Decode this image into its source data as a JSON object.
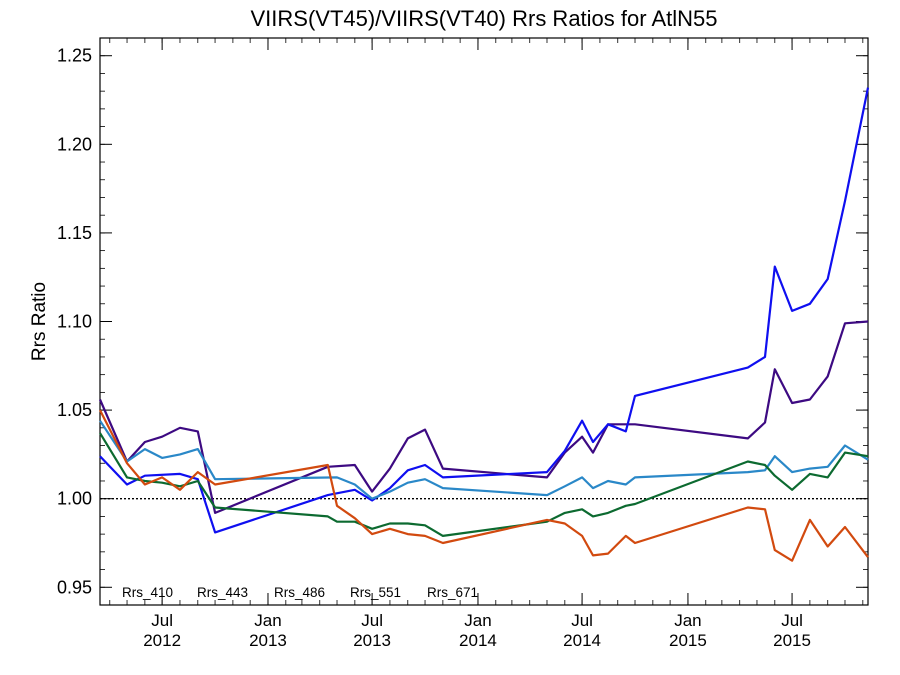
{
  "chart_data": {
    "type": "line",
    "title": "VIIRS(VT45)/VIIRS(VT40)  Rrs Ratios for AtlN55",
    "xlabel": "",
    "ylabel": "Rrs Ratio",
    "xlim": [
      "2012-03-15",
      "2015-11-10"
    ],
    "ylim": [
      0.94,
      1.26
    ],
    "x_ticks": [
      {
        "date": "2012-07-01",
        "line1": "Jul",
        "line2": "2012"
      },
      {
        "date": "2013-01-01",
        "line1": "Jan",
        "line2": "2013"
      },
      {
        "date": "2013-07-01",
        "line1": "Jul",
        "line2": "2013"
      },
      {
        "date": "2014-01-01",
        "line1": "Jan",
        "line2": "2014"
      },
      {
        "date": "2014-07-01",
        "line1": "Jul",
        "line2": "2014"
      },
      {
        "date": "2015-01-01",
        "line1": "Jan",
        "line2": "2015"
      },
      {
        "date": "2015-07-01",
        "line1": "Jul",
        "line2": "2015"
      }
    ],
    "y_ticks": [
      {
        "value": 0.95,
        "label": "0.95"
      },
      {
        "value": 1.0,
        "label": "1.00"
      },
      {
        "value": 1.05,
        "label": "1.05"
      },
      {
        "value": 1.1,
        "label": "1.10"
      },
      {
        "value": 1.15,
        "label": "1.15"
      },
      {
        "value": 1.2,
        "label": "1.20"
      },
      {
        "value": 1.25,
        "label": "1.25"
      }
    ],
    "reference_line": {
      "y": 1.0,
      "style": "dotted"
    },
    "legend_position": "bottom-left",
    "series": [
      {
        "name": "Rrs_410",
        "color": "#3d0a82",
        "points": [
          [
            "2012-03-15",
            1.056
          ],
          [
            "2012-05-01",
            1.021
          ],
          [
            "2012-06-01",
            1.032
          ],
          [
            "2012-07-01",
            1.035
          ],
          [
            "2012-08-01",
            1.04
          ],
          [
            "2012-09-01",
            1.038
          ],
          [
            "2012-10-01",
            0.992
          ],
          [
            "2013-04-15",
            1.018
          ],
          [
            "2013-06-01",
            1.019
          ],
          [
            "2013-07-01",
            1.004
          ],
          [
            "2013-08-01",
            1.017
          ],
          [
            "2013-09-01",
            1.034
          ],
          [
            "2013-10-01",
            1.039
          ],
          [
            "2013-11-01",
            1.017
          ],
          [
            "2014-05-01",
            1.012
          ],
          [
            "2014-06-01",
            1.026
          ],
          [
            "2014-07-01",
            1.035
          ],
          [
            "2014-07-20",
            1.026
          ],
          [
            "2014-08-15",
            1.042
          ],
          [
            "2014-10-01",
            1.042
          ],
          [
            "2015-04-15",
            1.034
          ],
          [
            "2015-05-15",
            1.043
          ],
          [
            "2015-06-01",
            1.073
          ],
          [
            "2015-07-01",
            1.054
          ],
          [
            "2015-08-01",
            1.056
          ],
          [
            "2015-09-01",
            1.069
          ],
          [
            "2015-10-01",
            1.099
          ],
          [
            "2015-11-10",
            1.1
          ]
        ]
      },
      {
        "name": "Rrs_443",
        "color": "#0f0ff0",
        "points": [
          [
            "2012-03-15",
            1.024
          ],
          [
            "2012-05-01",
            1.008
          ],
          [
            "2012-06-01",
            1.013
          ],
          [
            "2012-08-01",
            1.014
          ],
          [
            "2012-09-01",
            1.011
          ],
          [
            "2012-10-01",
            0.981
          ],
          [
            "2013-04-15",
            1.002
          ],
          [
            "2013-06-01",
            1.005
          ],
          [
            "2013-07-01",
            0.999
          ],
          [
            "2013-08-01",
            1.006
          ],
          [
            "2013-09-01",
            1.016
          ],
          [
            "2013-10-01",
            1.019
          ],
          [
            "2013-11-01",
            1.012
          ],
          [
            "2014-05-01",
            1.015
          ],
          [
            "2014-06-01",
            1.027
          ],
          [
            "2014-07-01",
            1.044
          ],
          [
            "2014-07-20",
            1.032
          ],
          [
            "2014-08-15",
            1.042
          ],
          [
            "2014-09-15",
            1.038
          ],
          [
            "2014-10-01",
            1.058
          ],
          [
            "2015-04-15",
            1.074
          ],
          [
            "2015-05-15",
            1.08
          ],
          [
            "2015-06-01",
            1.131
          ],
          [
            "2015-07-01",
            1.106
          ],
          [
            "2015-08-01",
            1.11
          ],
          [
            "2015-09-01",
            1.124
          ],
          [
            "2015-10-01",
            1.168
          ],
          [
            "2015-11-10",
            1.232
          ]
        ]
      },
      {
        "name": "Rrs_486",
        "color": "#2a88c8",
        "points": [
          [
            "2012-03-15",
            1.044
          ],
          [
            "2012-05-01",
            1.021
          ],
          [
            "2012-06-01",
            1.028
          ],
          [
            "2012-07-01",
            1.023
          ],
          [
            "2012-08-01",
            1.025
          ],
          [
            "2012-09-01",
            1.028
          ],
          [
            "2012-10-01",
            1.011
          ],
          [
            "2013-05-01",
            1.012
          ],
          [
            "2013-06-01",
            1.008
          ],
          [
            "2013-07-01",
            1.0
          ],
          [
            "2013-08-01",
            1.004
          ],
          [
            "2013-09-01",
            1.009
          ],
          [
            "2013-10-01",
            1.011
          ],
          [
            "2013-11-01",
            1.006
          ],
          [
            "2014-05-01",
            1.002
          ],
          [
            "2014-06-01",
            1.007
          ],
          [
            "2014-07-01",
            1.012
          ],
          [
            "2014-07-20",
            1.006
          ],
          [
            "2014-08-15",
            1.01
          ],
          [
            "2014-09-15",
            1.008
          ],
          [
            "2014-10-01",
            1.012
          ],
          [
            "2015-04-15",
            1.015
          ],
          [
            "2015-05-15",
            1.016
          ],
          [
            "2015-06-01",
            1.024
          ],
          [
            "2015-07-01",
            1.015
          ],
          [
            "2015-08-01",
            1.017
          ],
          [
            "2015-09-01",
            1.018
          ],
          [
            "2015-10-01",
            1.03
          ],
          [
            "2015-11-10",
            1.022
          ]
        ]
      },
      {
        "name": "Rrs_551",
        "color": "#0c6a30",
        "points": [
          [
            "2012-03-15",
            1.037
          ],
          [
            "2012-05-01",
            1.012
          ],
          [
            "2012-06-01",
            1.01
          ],
          [
            "2012-07-01",
            1.009
          ],
          [
            "2012-08-01",
            1.007
          ],
          [
            "2012-09-01",
            1.01
          ],
          [
            "2012-10-01",
            0.995
          ],
          [
            "2013-04-15",
            0.99
          ],
          [
            "2013-05-01",
            0.987
          ],
          [
            "2013-06-01",
            0.987
          ],
          [
            "2013-07-01",
            0.983
          ],
          [
            "2013-08-01",
            0.986
          ],
          [
            "2013-09-01",
            0.986
          ],
          [
            "2013-10-01",
            0.985
          ],
          [
            "2013-11-01",
            0.979
          ],
          [
            "2014-05-01",
            0.987
          ],
          [
            "2014-06-01",
            0.992
          ],
          [
            "2014-07-01",
            0.994
          ],
          [
            "2014-07-20",
            0.99
          ],
          [
            "2014-08-15",
            0.992
          ],
          [
            "2014-09-15",
            0.996
          ],
          [
            "2014-10-01",
            0.997
          ],
          [
            "2015-04-15",
            1.021
          ],
          [
            "2015-05-15",
            1.019
          ],
          [
            "2015-06-01",
            1.013
          ],
          [
            "2015-07-01",
            1.005
          ],
          [
            "2015-08-01",
            1.014
          ],
          [
            "2015-09-01",
            1.012
          ],
          [
            "2015-10-01",
            1.026
          ],
          [
            "2015-11-10",
            1.024
          ]
        ]
      },
      {
        "name": "Rrs_671",
        "color": "#d24a0f",
        "points": [
          [
            "2012-03-15",
            1.05
          ],
          [
            "2012-05-01",
            1.02
          ],
          [
            "2012-06-01",
            1.008
          ],
          [
            "2012-07-01",
            1.012
          ],
          [
            "2012-08-01",
            1.005
          ],
          [
            "2012-09-01",
            1.015
          ],
          [
            "2012-10-01",
            1.008
          ],
          [
            "2013-04-15",
            1.019
          ],
          [
            "2013-05-01",
            0.996
          ],
          [
            "2013-06-01",
            0.989
          ],
          [
            "2013-07-01",
            0.98
          ],
          [
            "2013-08-01",
            0.983
          ],
          [
            "2013-09-01",
            0.98
          ],
          [
            "2013-10-01",
            0.979
          ],
          [
            "2013-11-01",
            0.975
          ],
          [
            "2014-05-01",
            0.988
          ],
          [
            "2014-06-01",
            0.986
          ],
          [
            "2014-07-01",
            0.979
          ],
          [
            "2014-07-20",
            0.968
          ],
          [
            "2014-08-15",
            0.969
          ],
          [
            "2014-09-15",
            0.979
          ],
          [
            "2014-10-01",
            0.975
          ],
          [
            "2015-04-15",
            0.995
          ],
          [
            "2015-05-15",
            0.994
          ],
          [
            "2015-06-01",
            0.971
          ],
          [
            "2015-07-01",
            0.965
          ],
          [
            "2015-08-01",
            0.988
          ],
          [
            "2015-09-01",
            0.973
          ],
          [
            "2015-10-01",
            0.984
          ],
          [
            "2015-11-10",
            0.967
          ]
        ]
      }
    ]
  }
}
